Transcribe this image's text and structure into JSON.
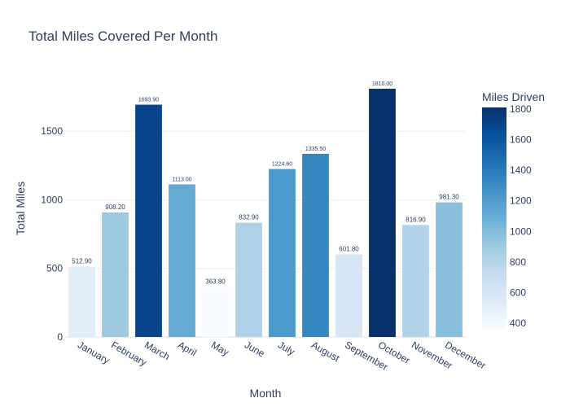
{
  "chart_data": {
    "type": "bar",
    "title": "Total Miles Covered Per Month",
    "xlabel": "Month",
    "ylabel": "Total Miles",
    "categories": [
      "January",
      "February",
      "March",
      "April",
      "May",
      "June",
      "July",
      "August",
      "September",
      "October",
      "November",
      "December"
    ],
    "values": [
      512.9,
      908.2,
      1693.9,
      1113.0,
      363.8,
      832.9,
      1224.6,
      1335.5,
      601.8,
      1810.0,
      816.9,
      981.3
    ],
    "value_labels": [
      "512.90",
      "908.20",
      "1693.90",
      "1113.00",
      "363.80",
      "832.90",
      "1224.60",
      "1335.50",
      "601.80",
      "1810.00",
      "816.90",
      "981.30"
    ],
    "yticks": [
      0,
      500,
      1000,
      1500
    ],
    "ylim": [
      0,
      1905
    ],
    "grid": true,
    "colorscale": "Blues",
    "colorbar": {
      "title": "Miles Driven",
      "ticks": [
        400,
        600,
        800,
        1000,
        1200,
        1400,
        1600,
        1800
      ],
      "range": [
        363.8,
        1810.0
      ]
    }
  }
}
